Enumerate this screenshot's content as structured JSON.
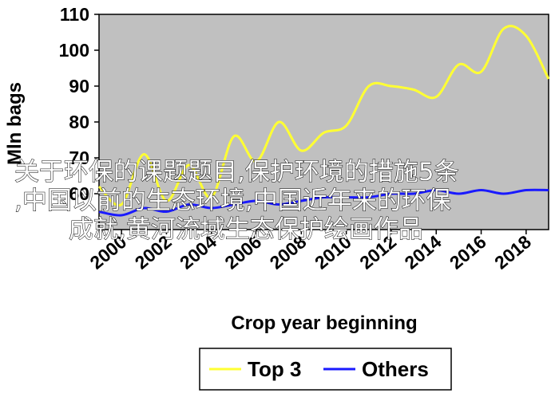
{
  "chart_data": {
    "type": "line",
    "xlabel": "Crop year beginning",
    "ylabel": "Mln bags",
    "xlim": [
      1999,
      2019
    ],
    "ylim": [
      50,
      110
    ],
    "yticks": [
      60,
      70,
      80,
      90,
      100,
      110
    ],
    "xticks": [
      "2000",
      "2002",
      "2004",
      "2006",
      "2008",
      "2010",
      "2012",
      "2014",
      "2016",
      "2018"
    ],
    "grid": "none",
    "legend": "bottom",
    "series": [
      {
        "name": "Top 3",
        "color": "#ffff33",
        "x": [
          1999,
          2000,
          2001,
          2002,
          2003,
          2004,
          2005,
          2006,
          2007,
          2008,
          2009,
          2010,
          2011,
          2012,
          2013,
          2014,
          2015,
          2016,
          2017,
          2018,
          2019
        ],
        "y": [
          62,
          57,
          71,
          58,
          68,
          59,
          76,
          69,
          80,
          72,
          77,
          79,
          90,
          90,
          89,
          87,
          96,
          94,
          106,
          104,
          92
        ]
      },
      {
        "name": "Others",
        "color": "#1a1aff",
        "x": [
          1999,
          2000,
          2001,
          2002,
          2003,
          2004,
          2005,
          2006,
          2007,
          2008,
          2009,
          2010,
          2011,
          2012,
          2013,
          2014,
          2015,
          2016,
          2017,
          2018,
          2019
        ],
        "y": [
          55,
          54,
          56,
          55,
          57,
          56,
          57,
          58,
          57,
          58,
          59,
          59,
          59,
          60,
          60,
          61,
          60,
          61,
          60,
          61,
          61
        ]
      }
    ]
  },
  "overlay": {
    "lines": [
      "关于环保的课题题目,保护环境的措施5条",
      ",中国以前的生态环境,中国近年来的环保",
      "成就,黄河流域生态保护绘画作品"
    ]
  }
}
